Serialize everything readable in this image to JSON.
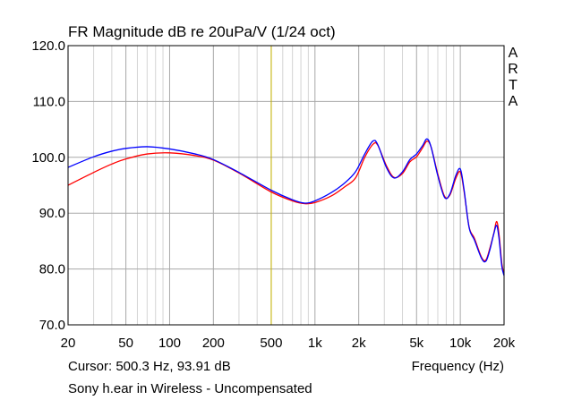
{
  "chart_data": {
    "type": "line",
    "title": "FR Magnitude dB re 20uPa/V (1/24 oct)",
    "xlabel": "Frequency (Hz)",
    "ylabel": "",
    "x_scale": "log",
    "xlim": [
      20,
      20000
    ],
    "ylim": [
      70,
      120
    ],
    "grid": true,
    "x_ticks": [
      {
        "value": 20,
        "label": "20"
      },
      {
        "value": 50,
        "label": "50"
      },
      {
        "value": 100,
        "label": "100"
      },
      {
        "value": 200,
        "label": "200"
      },
      {
        "value": 500,
        "label": "500"
      },
      {
        "value": 1000,
        "label": "1k"
      },
      {
        "value": 2000,
        "label": "2k"
      },
      {
        "value": 5000,
        "label": "5k"
      },
      {
        "value": 10000,
        "label": "10k"
      },
      {
        "value": 20000,
        "label": "20k"
      }
    ],
    "y_ticks": [
      {
        "value": 70,
        "label": "70.0"
      },
      {
        "value": 80,
        "label": "80.0"
      },
      {
        "value": 90,
        "label": "90.0"
      },
      {
        "value": 100,
        "label": "100.0"
      },
      {
        "value": 110,
        "label": "110.0"
      },
      {
        "value": 120,
        "label": "120.0"
      }
    ],
    "cursor": {
      "x": 500.3,
      "y": 93.91,
      "color": "#c8b400"
    },
    "series": [
      {
        "name": "red",
        "color": "#ff0000",
        "x": [
          20,
          30,
          40,
          50,
          70,
          100,
          150,
          200,
          300,
          500,
          700,
          850,
          1000,
          1300,
          1600,
          1900,
          2200,
          2500,
          2700,
          3100,
          3500,
          4000,
          4500,
          5000,
          5500,
          5900,
          6300,
          7000,
          7800,
          8500,
          9300,
          10000,
          10600,
          11500,
          12500,
          14000,
          15000,
          16000,
          17000,
          17800,
          18500,
          19300,
          20000
        ],
        "values": [
          95.0,
          97.3,
          98.8,
          99.7,
          100.6,
          100.8,
          100.3,
          99.5,
          97.2,
          93.8,
          92.2,
          91.7,
          91.9,
          93.1,
          94.7,
          96.3,
          100.0,
          102.3,
          102.2,
          98.5,
          96.4,
          97.1,
          99.2,
          100.1,
          101.7,
          102.9,
          101.8,
          97.0,
          93.0,
          93.3,
          96.2,
          97.4,
          94.0,
          87.5,
          85.5,
          82.1,
          81.6,
          83.8,
          86.4,
          88.5,
          86.0,
          81.0,
          79.0
        ]
      },
      {
        "name": "blue",
        "color": "#0000ff",
        "x": [
          20,
          30,
          40,
          50,
          70,
          100,
          150,
          200,
          300,
          500,
          700,
          850,
          1000,
          1300,
          1600,
          1900,
          2200,
          2500,
          2700,
          3100,
          3500,
          4000,
          4500,
          5000,
          5500,
          5900,
          6300,
          7000,
          7800,
          8500,
          9300,
          10000,
          10600,
          11500,
          12500,
          14000,
          15000,
          16000,
          17000,
          17800,
          18500,
          19300,
          20000
        ],
        "values": [
          98.2,
          100.1,
          101.1,
          101.6,
          101.9,
          101.5,
          100.6,
          99.6,
          97.3,
          94.1,
          92.4,
          91.8,
          92.2,
          93.7,
          95.4,
          97.4,
          100.6,
          102.9,
          102.3,
          98.2,
          96.3,
          97.4,
          99.6,
          100.6,
          102.1,
          103.3,
          101.8,
          96.7,
          92.8,
          93.5,
          96.7,
          97.9,
          94.3,
          87.4,
          85.2,
          81.9,
          81.4,
          83.5,
          86.3,
          87.8,
          85.3,
          80.5,
          78.8
        ]
      }
    ]
  },
  "title": "FR Magnitude dB re 20uPa/V (1/24 oct)",
  "brand_letters": [
    "A",
    "R",
    "T",
    "A"
  ],
  "cursor_readout": "Cursor: 500.3 Hz, 93.91 dB",
  "xlabel": "Frequency (Hz)",
  "caption": "Sony h.ear in Wireless - Uncompensated"
}
